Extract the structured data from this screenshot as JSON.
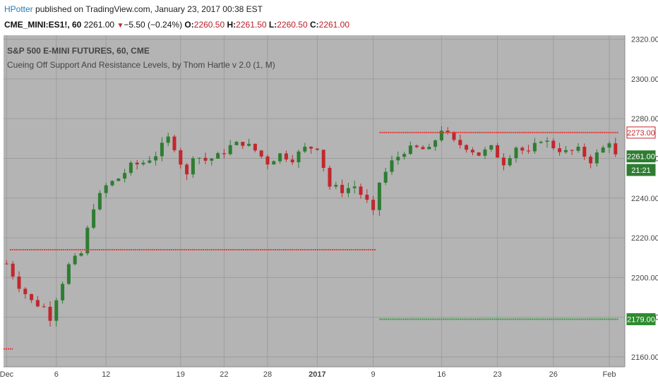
{
  "publish": {
    "author": "HPotter",
    "text": " published on TradingView.com, January 23, 2017 00:38 EST"
  },
  "ohlc": {
    "symbol": "CME_MINI:ES1!, 60",
    "last": "2261.00",
    "change": "−5.50 (−0.24%)",
    "o_label": "O:",
    "o": "2260.50",
    "h_label": "H:",
    "h": "2261.50",
    "l_label": "L:",
    "l": "2260.50",
    "c_label": "C:",
    "c": "2261.00"
  },
  "legend": {
    "title": "S&P 500 E-MINI FUTURES, 60, CME",
    "indicator": "Cueing Off Support And Resistance Levels, by Thom Hartle v 2.0 (1, M)"
  },
  "colors": {
    "plot_bg": "#b4b4b4",
    "grid": "#9d9d9d",
    "up": "#2e7d32",
    "down": "#c0282d",
    "resistance": "#e53935",
    "support": "#2e9e3a",
    "axis_bg": "#ffffff"
  },
  "chart_data": {
    "type": "candlestick",
    "ylim": [
      2155,
      2322
    ],
    "y_ticks": [
      2160,
      2180,
      2200,
      2220,
      2240,
      2260,
      2280,
      2300,
      2320
    ],
    "x_ticks": [
      "Dec",
      "6",
      "12",
      "19",
      "22",
      "28",
      "2017",
      "9",
      "16",
      "23",
      "26",
      "Feb"
    ],
    "close_path": [
      [
        0,
        2207
      ],
      [
        2,
        2196
      ],
      [
        4,
        2188
      ],
      [
        6,
        2185
      ],
      [
        7,
        2180
      ],
      [
        8,
        2190
      ],
      [
        9,
        2198
      ],
      [
        10,
        2206
      ],
      [
        12,
        2212
      ],
      [
        14,
        2236
      ],
      [
        16,
        2246
      ],
      [
        18,
        2250
      ],
      [
        20,
        2256
      ],
      [
        22,
        2258
      ],
      [
        24,
        2262
      ],
      [
        26,
        2270
      ],
      [
        27,
        2266
      ],
      [
        28,
        2258
      ],
      [
        29,
        2251
      ],
      [
        30,
        2262
      ],
      [
        32,
        2259
      ],
      [
        34,
        2261
      ],
      [
        36,
        2266
      ],
      [
        38,
        2268
      ],
      [
        40,
        2264
      ],
      [
        42,
        2258
      ],
      [
        44,
        2262
      ],
      [
        46,
        2260
      ],
      [
        48,
        2265
      ],
      [
        50,
        2266
      ],
      [
        51,
        2256
      ],
      [
        52,
        2246
      ],
      [
        54,
        2244
      ],
      [
        56,
        2246
      ],
      [
        58,
        2238
      ],
      [
        59,
        2232
      ],
      [
        60,
        2248
      ],
      [
        62,
        2258
      ],
      [
        64,
        2264
      ],
      [
        66,
        2265
      ],
      [
        68,
        2264
      ],
      [
        70,
        2275
      ],
      [
        72,
        2268
      ],
      [
        74,
        2266
      ],
      [
        76,
        2262
      ],
      [
        78,
        2265
      ],
      [
        80,
        2258
      ],
      [
        82,
        2266
      ],
      [
        84,
        2262
      ],
      [
        86,
        2270
      ],
      [
        88,
        2266
      ],
      [
        90,
        2263
      ],
      [
        92,
        2264
      ],
      [
        94,
        2259
      ],
      [
        96,
        2265
      ],
      [
        97,
        2269
      ],
      [
        98,
        2261
      ]
    ],
    "lines": [
      {
        "name": "resistance",
        "y": 2214,
        "x_from": 0.5,
        "x_to": 59.5
      },
      {
        "name": "resistance",
        "y": 2273,
        "x_from": 60,
        "x_to": 98.5
      },
      {
        "name": "support",
        "y": 2179,
        "x_from": 60,
        "x_to": 98.5
      },
      {
        "name": "resistance",
        "y": 2164,
        "x_from": -0.5,
        "x_to": 1
      }
    ],
    "price_labels": [
      {
        "value": "2273.00",
        "y": 2273,
        "kind": "resistance"
      },
      {
        "value": "2261.00",
        "y": 2261,
        "kind": "last"
      },
      {
        "value": "21:21",
        "y": 2257,
        "kind": "last"
      },
      {
        "value": "2179.00",
        "y": 2179,
        "kind": "support"
      }
    ]
  }
}
